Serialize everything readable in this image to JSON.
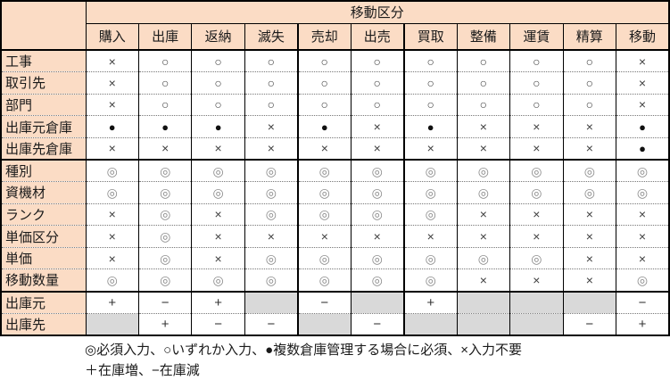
{
  "table": {
    "group_header": "移動区分",
    "corner_label": "",
    "columns": [
      "購入",
      "出庫",
      "返納",
      "滅失",
      "売却",
      "出売",
      "買取",
      "整備",
      "運賃",
      "精算",
      "移動"
    ],
    "rows": [
      {
        "label": "工事",
        "cells": [
          "×",
          "○",
          "○",
          "○",
          "○",
          "○",
          "○",
          "○",
          "○",
          "○",
          "×"
        ]
      },
      {
        "label": "取引先",
        "cells": [
          "×",
          "○",
          "○",
          "○",
          "○",
          "○",
          "○",
          "○",
          "○",
          "○",
          "×"
        ]
      },
      {
        "label": "部門",
        "cells": [
          "×",
          "○",
          "○",
          "○",
          "○",
          "○",
          "○",
          "○",
          "○",
          "○",
          "×"
        ]
      },
      {
        "label": "出庫元倉庫",
        "cells": [
          "●",
          "●",
          "●",
          "×",
          "●",
          "×",
          "●",
          "×",
          "×",
          "×",
          "●"
        ]
      },
      {
        "label": "出庫先倉庫",
        "cells": [
          "×",
          "×",
          "×",
          "×",
          "×",
          "×",
          "×",
          "×",
          "×",
          "×",
          "●"
        ]
      },
      {
        "label": "種別",
        "cells": [
          "◎",
          "◎",
          "◎",
          "◎",
          "◎",
          "◎",
          "◎",
          "◎",
          "◎",
          "◎",
          "◎"
        ]
      },
      {
        "label": "資機材",
        "cells": [
          "◎",
          "◎",
          "◎",
          "◎",
          "◎",
          "◎",
          "◎",
          "◎",
          "◎",
          "◎",
          "◎"
        ]
      },
      {
        "label": "ランク",
        "cells": [
          "×",
          "◎",
          "×",
          "◎",
          "◎",
          "◎",
          "◎",
          "×",
          "×",
          "×",
          "×"
        ]
      },
      {
        "label": "単価区分",
        "cells": [
          "×",
          "◎",
          "×",
          "×",
          "×",
          "×",
          "×",
          "×",
          "×",
          "×",
          "×"
        ]
      },
      {
        "label": "単価",
        "cells": [
          "×",
          "◎",
          "×",
          "◎",
          "◎",
          "◎",
          "◎",
          "◎",
          "◎",
          "×",
          "×"
        ]
      },
      {
        "label": "移動数量",
        "cells": [
          "◎",
          "◎",
          "◎",
          "◎",
          "◎",
          "◎",
          "◎",
          "×",
          "×",
          "×",
          "◎"
        ]
      },
      {
        "label": "出庫元",
        "cells": [
          "+",
          "−",
          "+",
          "G",
          "−",
          "G",
          "+",
          "G",
          "G",
          "G",
          "−"
        ]
      },
      {
        "label": "出庫先",
        "cells": [
          "G",
          "+",
          "−",
          "−",
          "G",
          "−",
          "G",
          "G",
          "G",
          "−",
          "+"
        ]
      }
    ],
    "gray_cell_marker": "G"
  },
  "legend": {
    "line1": "◎必須入力、○いずれか入力、●複数倉庫管理する場合に必須、×入力不要",
    "line2": "＋在庫増、−在庫減"
  },
  "colors": {
    "header_bg": "#fbdcc5",
    "gray_cell_bg": "#d9d9d9",
    "border": "#000000"
  }
}
